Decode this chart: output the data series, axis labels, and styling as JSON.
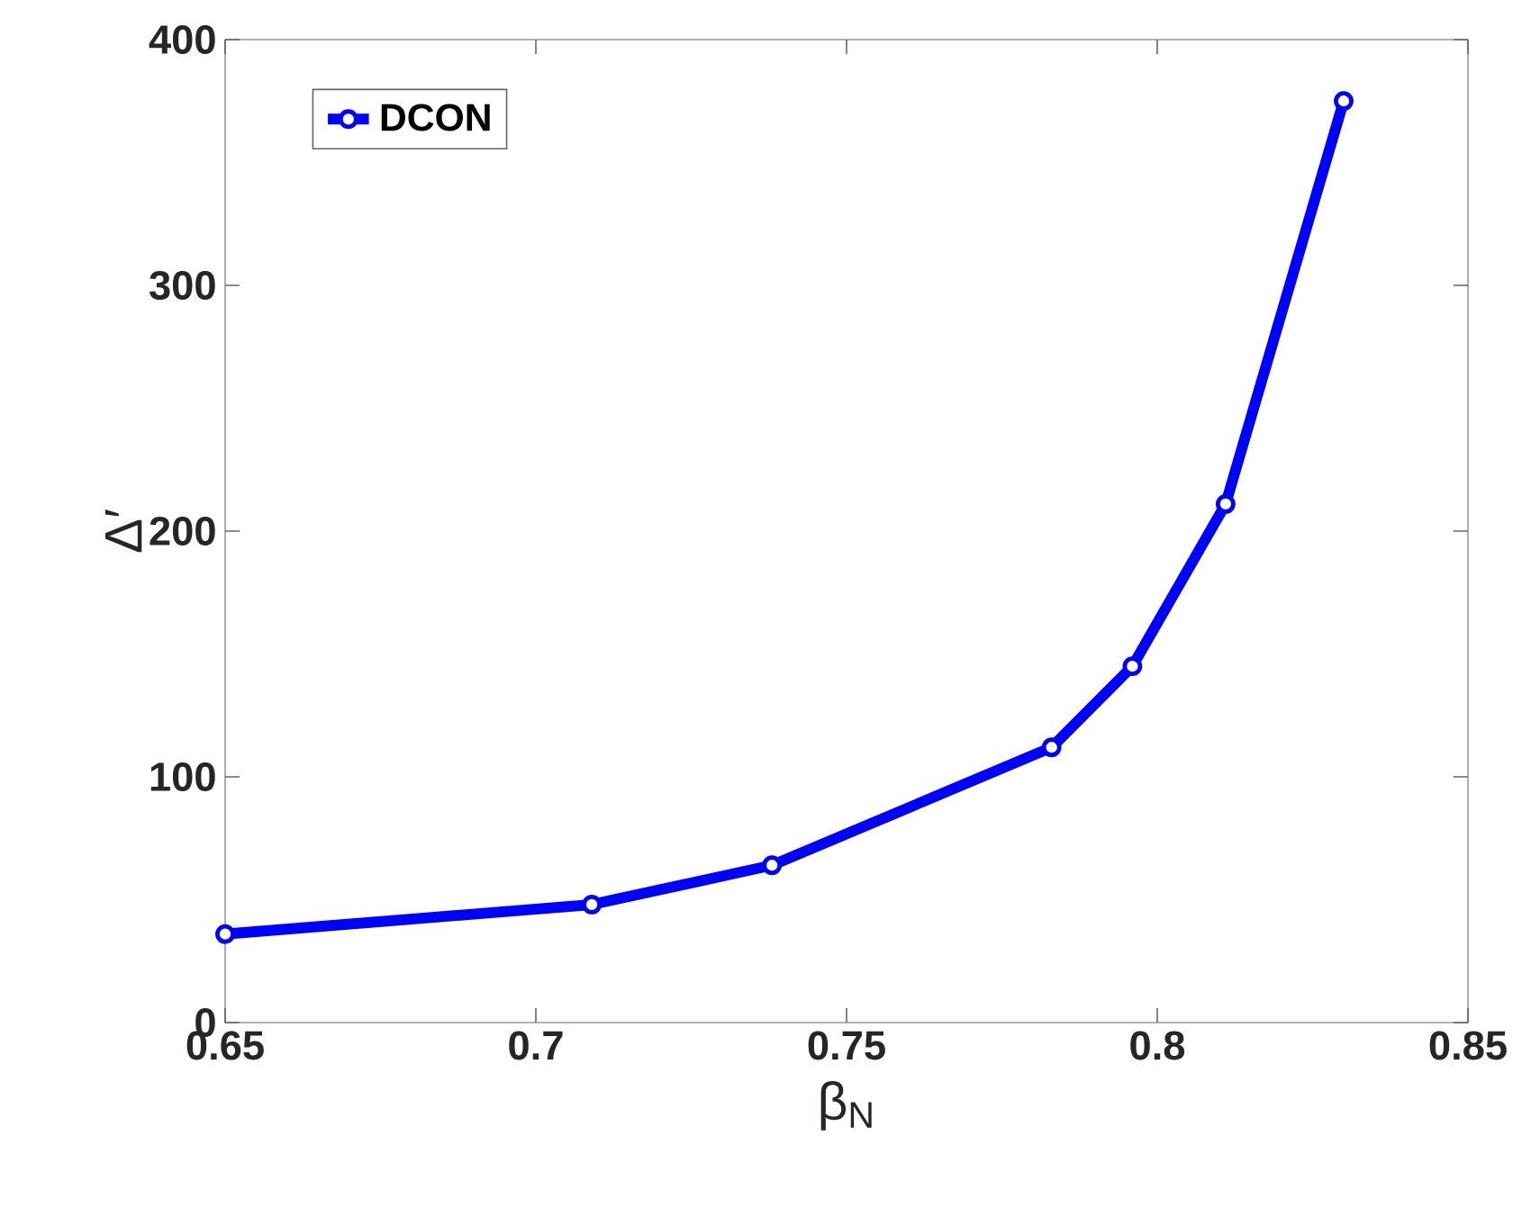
{
  "chart_data": {
    "type": "line",
    "xlabel": "β$_{N}$",
    "ylabel": "Δ′",
    "x": [
      0.65,
      0.709,
      0.738,
      0.783,
      0.796,
      0.811,
      0.83
    ],
    "series": [
      {
        "name": "DCON",
        "color": "#0000ff",
        "values": [
          36,
          48,
          64,
          112,
          145,
          211,
          375
        ]
      }
    ],
    "xlim": [
      0.65,
      0.85
    ],
    "ylim": [
      0,
      400
    ],
    "xticks": [
      0.65,
      0.7,
      0.75,
      0.8,
      0.85
    ],
    "yticks": [
      0,
      100,
      200,
      300,
      400
    ],
    "grid": false,
    "legend": "top left",
    "marker": "circle",
    "line_style": "solid"
  }
}
